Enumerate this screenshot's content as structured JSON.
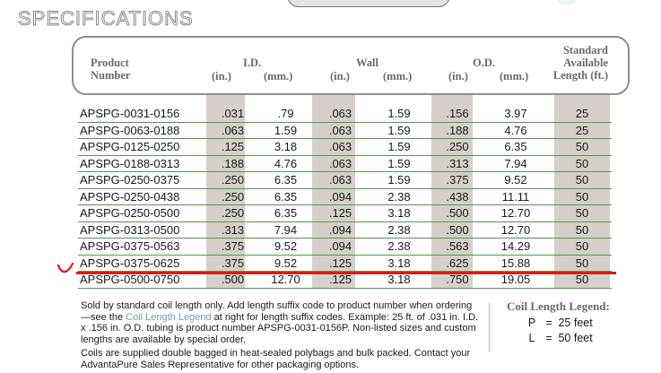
{
  "title": "Specifications",
  "headers": {
    "product": "Product",
    "number": "Number",
    "id": "I.D.",
    "wall": "Wall",
    "od": "O.D.",
    "std1": "Standard",
    "std2": "Available",
    "std3": "Length (ft.)",
    "in": "(in.)",
    "mm": "(mm.)"
  },
  "rows": [
    [
      "APSPG-0031-0156",
      ".031",
      ".79",
      ".063",
      "1.59",
      ".156",
      "3.97",
      "25"
    ],
    [
      "APSPG-0063-0188",
      ".063",
      "1.59",
      ".063",
      "1.59",
      ".188",
      "4.76",
      "25"
    ],
    [
      "APSPG-0125-0250",
      ".125",
      "3.18",
      ".063",
      "1.59",
      ".250",
      "6.35",
      "50"
    ],
    [
      "APSPG-0188-0313",
      ".188",
      "4.76",
      ".063",
      "1.59",
      ".313",
      "7.94",
      "50"
    ],
    [
      "APSPG-0250-0375",
      ".250",
      "6.35",
      ".063",
      "1.59",
      ".375",
      "9.52",
      "50"
    ],
    [
      "APSPG-0250-0438",
      ".250",
      "6.35",
      ".094",
      "2.38",
      ".438",
      "11.11",
      "50"
    ],
    [
      "APSPG-0250-0500",
      ".250",
      "6.35",
      ".125",
      "3.18",
      ".500",
      "12.70",
      "50"
    ],
    [
      "APSPG-0313-0500",
      ".313",
      "7.94",
      ".094",
      "2.38",
      ".500",
      "12.70",
      "50"
    ],
    [
      "APSPG-0375-0563",
      ".375",
      "9.52",
      ".094",
      "2.38",
      ".563",
      "14.29",
      "50"
    ],
    [
      "APSPG-0375-0625",
      ".375",
      "9.52",
      ".125",
      "3.18",
      ".625",
      "15.88",
      "50"
    ],
    [
      "APSPG-0500-0750",
      ".500",
      "12.70",
      ".125",
      "3.18",
      ".750",
      "19.05",
      "50"
    ]
  ],
  "notes": {
    "p1a": "Sold by standard coil length only. Add length suffix code to product number when ordering—see the ",
    "p1link": "Coil Length Legend",
    "p1b": " at right for length suffix codes. Example: 25 ft. of .031 in. I.D. x .156 in. O.D. tubing is product number APSPG-0031-0156P. Non-listed sizes and custom lengths are available by special order.",
    "p2": "Coils are supplied double bagged in heat-sealed polybags and bulk packed. Contact your AdvantaPure Sales Representative for other packaging options."
  },
  "legend": {
    "title": "Coil Length Legend:",
    "eq": "=",
    "items": [
      {
        "key": "P",
        "value": "25 feet"
      },
      {
        "key": "L",
        "value": "50 feet"
      }
    ]
  },
  "colors": {
    "band": "#d7cfc9",
    "rule": "#4f9a4f",
    "annotation": "#e01818"
  }
}
